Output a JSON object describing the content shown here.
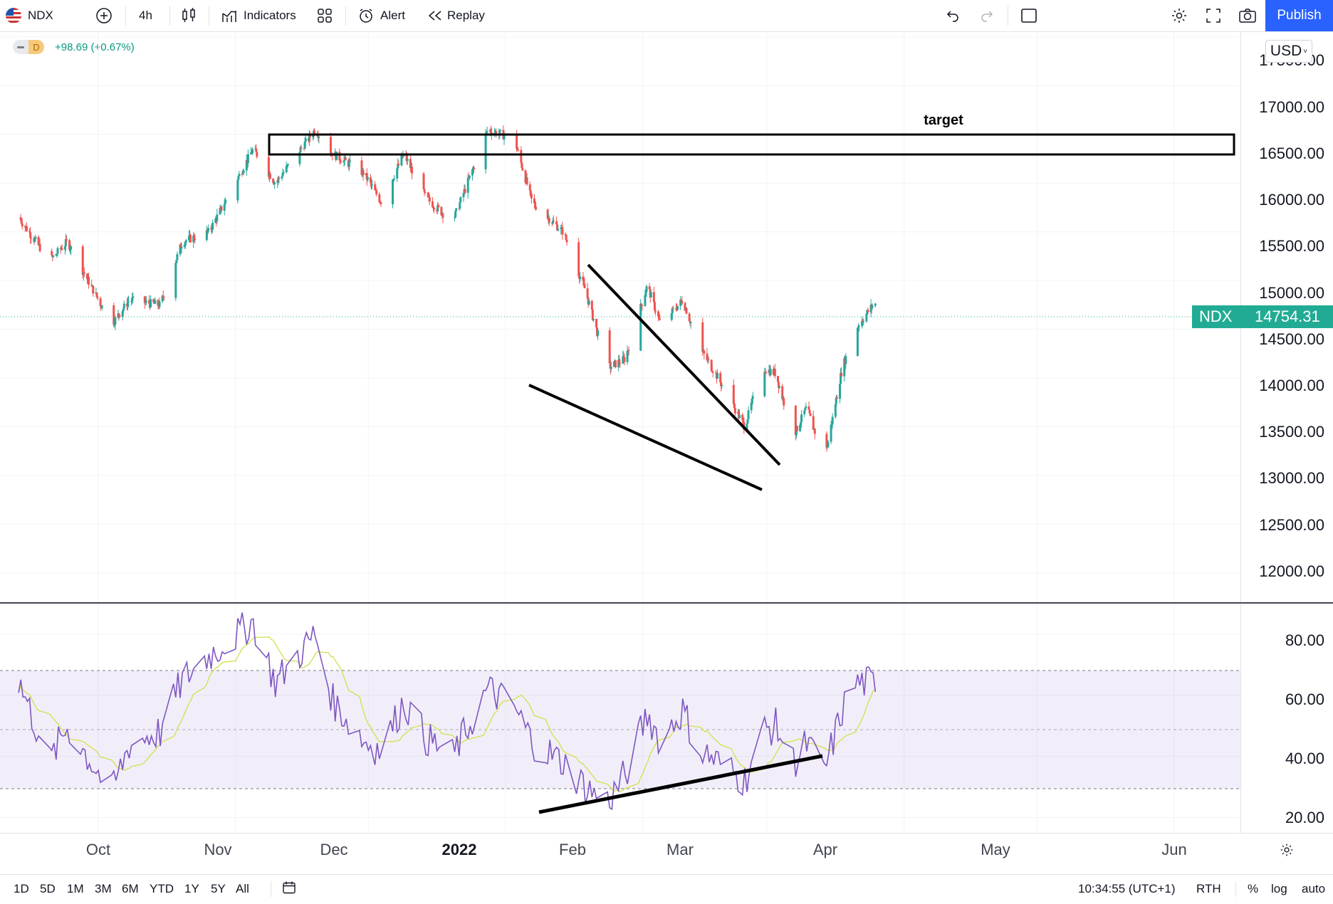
{
  "toolbar": {
    "symbol": "NDX",
    "interval": "4h",
    "indicators_label": "Indicators",
    "alert_label": "Alert",
    "replay_label": "Replay",
    "publish_label": "Publish"
  },
  "legend": {
    "badge": "D",
    "change": "+98.69 (+0.67%)"
  },
  "currency": "USD",
  "price_axis": {
    "labels": [
      "17500.00",
      "17000.00",
      "16500.00",
      "16000.00",
      "15500.00",
      "15000.00",
      "14500.00",
      "14000.00",
      "13500.00",
      "13000.00",
      "12500.00",
      "12000.00"
    ]
  },
  "last_price": {
    "symbol": "NDX",
    "value": "14754.31"
  },
  "annotation": {
    "target_label": "target"
  },
  "rsi_axis": {
    "labels": [
      "80.00",
      "60.00",
      "40.00",
      "20.00"
    ]
  },
  "time_axis": {
    "labels": [
      "Oct",
      "Nov",
      "Dec",
      "2022",
      "Feb",
      "Mar",
      "Apr",
      "May",
      "Jun"
    ]
  },
  "bottom": {
    "ranges": [
      "1D",
      "5D",
      "1M",
      "3M",
      "6M",
      "YTD",
      "1Y",
      "5Y",
      "All"
    ],
    "clock": "10:34:55 (UTC+1)",
    "session": "RTH",
    "percent": "%",
    "log": "log",
    "auto": "auto"
  },
  "colors": {
    "up": "#26a69a",
    "down": "#ef5350",
    "rsi": "#7e57c2",
    "rsi_ma": "#d4e157",
    "accent": "#2962ff",
    "last": "#22ab94"
  },
  "chart_data": {
    "type": "candlestick",
    "symbol": "NDX",
    "interval": "4h",
    "ylim": [
      11700,
      17550
    ],
    "anchors": [
      [
        "Sep 13",
        15650
      ],
      [
        "Sep 20",
        15200
      ],
      [
        "Sep 24",
        15400
      ],
      [
        "Oct 4",
        14550
      ],
      [
        "Oct 8",
        14800
      ],
      [
        "Oct 15",
        14750
      ],
      [
        "Oct 20",
        15400
      ],
      [
        "Oct 26",
        15500
      ],
      [
        "Nov 5",
        16350
      ],
      [
        "Nov 10",
        16000
      ],
      [
        "Nov 19",
        16550
      ],
      [
        "Nov 23",
        16300
      ],
      [
        "Nov 30",
        16100
      ],
      [
        "Dec 4",
        15800
      ],
      [
        "Dec 9",
        16300
      ],
      [
        "Dec 14",
        15850
      ],
      [
        "Dec 20",
        15600
      ],
      [
        "Dec 28",
        16550
      ],
      [
        "Jan 3",
        16450
      ],
      [
        "Jan 7",
        15800
      ],
      [
        "Jan 14",
        15500
      ],
      [
        "Jan 19",
        14900
      ],
      [
        "Jan 24",
        14100
      ],
      [
        "Jan 28",
        14200
      ],
      [
        "Feb 2",
        14950
      ],
      [
        "Feb 5",
        14550
      ],
      [
        "Feb 10",
        14800
      ],
      [
        "Feb 14",
        14300
      ],
      [
        "Feb 18",
        14000
      ],
      [
        "Feb 24",
        13500
      ],
      [
        "Feb 28",
        14100
      ],
      [
        "Mar 3",
        14050
      ],
      [
        "Mar 7",
        13400
      ],
      [
        "Mar 10",
        13700
      ],
      [
        "Mar 14",
        13150
      ],
      [
        "Mar 18",
        14100
      ],
      [
        "Mar 21",
        14500
      ],
      [
        "Mar 25",
        14754
      ]
    ],
    "rsi": {
      "levels": [
        70,
        50,
        30
      ],
      "ylim": [
        15,
        90
      ],
      "anchors": [
        [
          "Sep 13",
          65
        ],
        [
          "Sep 20",
          38
        ],
        [
          "Sep 24",
          50
        ],
        [
          "Oct 4",
          28
        ],
        [
          "Oct 8",
          44
        ],
        [
          "Oct 15",
          48
        ],
        [
          "Oct 20",
          65
        ],
        [
          "Oct 26",
          73
        ],
        [
          "Nov 5",
          84
        ],
        [
          "Nov 10",
          64
        ],
        [
          "Nov 19",
          80
        ],
        [
          "Nov 23",
          58
        ],
        [
          "Nov 30",
          45
        ],
        [
          "Dec 4",
          42
        ],
        [
          "Dec 9",
          58
        ],
        [
          "Dec 14",
          46
        ],
        [
          "Dec 20",
          40
        ],
        [
          "Dec 28",
          62
        ],
        [
          "Jan 3",
          56
        ],
        [
          "Jan 7",
          45
        ],
        [
          "Jan 14",
          38
        ],
        [
          "Jan 19",
          30
        ],
        [
          "Jan 24",
          25
        ],
        [
          "Jan 28",
          34
        ],
        [
          "Feb 2",
          54
        ],
        [
          "Feb 5",
          45
        ],
        [
          "Feb 10",
          55
        ],
        [
          "Feb 14",
          42
        ],
        [
          "Feb 18",
          38
        ],
        [
          "Feb 24",
          32
        ],
        [
          "Feb 28",
          48
        ],
        [
          "Mar 3",
          50
        ],
        [
          "Mar 7",
          38
        ],
        [
          "Mar 10",
          44
        ],
        [
          "Mar 14",
          35
        ],
        [
          "Mar 18",
          55
        ],
        [
          "Mar 21",
          64
        ],
        [
          "Mar 25",
          64
        ]
      ]
    }
  }
}
